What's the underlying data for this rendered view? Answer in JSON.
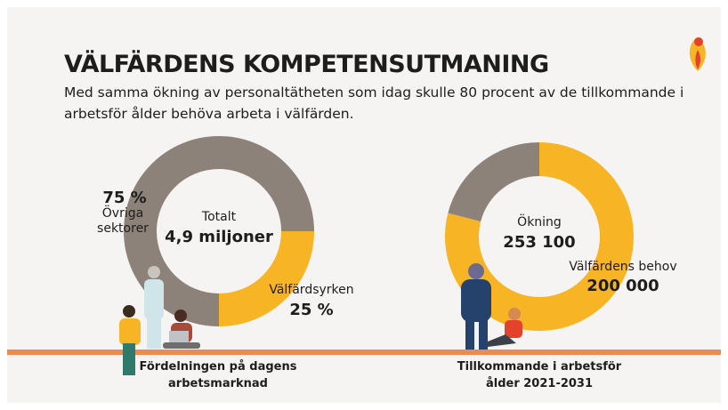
{
  "title": "VÄLFÄRDENS KOMPETENSUTMANING",
  "subtitle": "Med samma ökning av personaltätheten som idag skulle 80 procent av de tillkommande i arbetsför ålder behöva arbeta i välfärden.",
  "chart_data": [
    {
      "type": "donut",
      "caption": "Fördelningen på dagens arbetsmarknad",
      "center_label": "Totalt",
      "center_value": "4,9 miljoner",
      "categories": [
        "Välfärdsyrken",
        "Övriga sektorer"
      ],
      "values": [
        25,
        75
      ],
      "value_labels": [
        "25 %",
        "75 %"
      ],
      "colors": [
        "#f7b526",
        "#8d8279"
      ],
      "start_angle": 90
    },
    {
      "type": "donut",
      "caption": "Tillkommande i arbetsför ålder 2021-2031",
      "center_label": "Ökning",
      "center_value": "253 100",
      "categories": [
        "Välfärdens behov",
        null
      ],
      "values": [
        200000,
        53100
      ],
      "value_labels": [
        "200 000",
        null
      ],
      "colors": [
        "#f7b526",
        "#8d8279"
      ],
      "start_angle": 0
    }
  ]
}
